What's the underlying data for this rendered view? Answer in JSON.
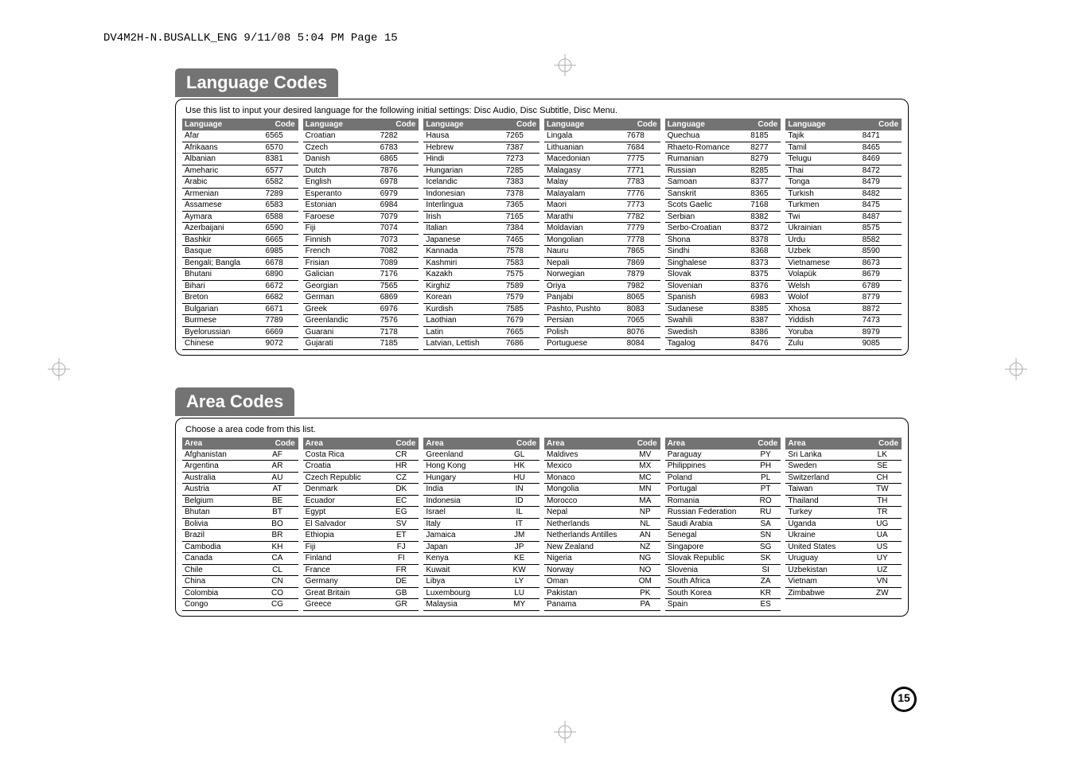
{
  "header": "DV4M2H-N.BUSALLK_ENG   9/11/08   5:04 PM   Page 15",
  "page_number": "15",
  "lang_section": {
    "title": "Language Codes",
    "subtitle": "Use this list to input your desired language for the following initial settings: Disc Audio, Disc Subtitle, Disc Menu.",
    "header_lang": "Language",
    "header_code": "Code",
    "columns": [
      [
        [
          "Afar",
          "6565"
        ],
        [
          "Afrikaans",
          "6570"
        ],
        [
          "Albanian",
          "8381"
        ],
        [
          "Ameharic",
          "6577"
        ],
        [
          "Arabic",
          "6582"
        ],
        [
          "Armenian",
          "7289"
        ],
        [
          "Assamese",
          "6583"
        ],
        [
          "Aymara",
          "6588"
        ],
        [
          "Azerbaijani",
          "6590"
        ],
        [
          "Bashkir",
          "6665"
        ],
        [
          "Basque",
          "6985"
        ],
        [
          "Bengali; Bangla",
          "6678"
        ],
        [
          "Bhutani",
          "6890"
        ],
        [
          "Bihari",
          "6672"
        ],
        [
          "Breton",
          "6682"
        ],
        [
          "Bulgarian",
          "6671"
        ],
        [
          "Burmese",
          "7789"
        ],
        [
          "Byelorussian",
          "6669"
        ],
        [
          "Chinese",
          "9072"
        ]
      ],
      [
        [
          "Croatian",
          "7282"
        ],
        [
          "Czech",
          "6783"
        ],
        [
          "Danish",
          "6865"
        ],
        [
          "Dutch",
          "7876"
        ],
        [
          "English",
          "6978"
        ],
        [
          "Esperanto",
          "6979"
        ],
        [
          "Estonian",
          "6984"
        ],
        [
          "Faroese",
          "7079"
        ],
        [
          "Fiji",
          "7074"
        ],
        [
          "Finnish",
          "7073"
        ],
        [
          "French",
          "7082"
        ],
        [
          "Frisian",
          "7089"
        ],
        [
          "Galician",
          "7176"
        ],
        [
          "Georgian",
          "7565"
        ],
        [
          "German",
          "6869"
        ],
        [
          "Greek",
          "6976"
        ],
        [
          "Greenlandic",
          "7576"
        ],
        [
          "Guarani",
          "7178"
        ],
        [
          "Gujarati",
          "7185"
        ]
      ],
      [
        [
          "Hausa",
          "7265"
        ],
        [
          "Hebrew",
          "7387"
        ],
        [
          "Hindi",
          "7273"
        ],
        [
          "Hungarian",
          "7285"
        ],
        [
          "Icelandic",
          "7383"
        ],
        [
          "Indonesian",
          "7378"
        ],
        [
          "Interlingua",
          "7365"
        ],
        [
          "Irish",
          "7165"
        ],
        [
          "Italian",
          "7384"
        ],
        [
          "Japanese",
          "7465"
        ],
        [
          "Kannada",
          "7578"
        ],
        [
          "Kashmiri",
          "7583"
        ],
        [
          "Kazakh",
          "7575"
        ],
        [
          "Kirghiz",
          "7589"
        ],
        [
          "Korean",
          "7579"
        ],
        [
          "Kurdish",
          "7585"
        ],
        [
          "Laothian",
          "7679"
        ],
        [
          "Latin",
          "7665"
        ],
        [
          "Latvian, Lettish",
          "7686"
        ]
      ],
      [
        [
          "Lingala",
          "7678"
        ],
        [
          "Lithuanian",
          "7684"
        ],
        [
          "Macedonian",
          "7775"
        ],
        [
          "Malagasy",
          "7771"
        ],
        [
          "Malay",
          "7783"
        ],
        [
          "Malayalam",
          "7776"
        ],
        [
          "Maori",
          "7773"
        ],
        [
          "Marathi",
          "7782"
        ],
        [
          "Moldavian",
          "7779"
        ],
        [
          "Mongolian",
          "7778"
        ],
        [
          "Nauru",
          "7865"
        ],
        [
          "Nepali",
          "7869"
        ],
        [
          "Norwegian",
          "7879"
        ],
        [
          "Oriya",
          "7982"
        ],
        [
          "Panjabi",
          "8065"
        ],
        [
          "Pashto, Pushto",
          "8083"
        ],
        [
          "Persian",
          "7065"
        ],
        [
          "Polish",
          "8076"
        ],
        [
          "Portuguese",
          "8084"
        ]
      ],
      [
        [
          "Quechua",
          "8185"
        ],
        [
          "Rhaeto-Romance",
          "8277"
        ],
        [
          "Rumanian",
          "8279"
        ],
        [
          "Russian",
          "8285"
        ],
        [
          "Samoan",
          "8377"
        ],
        [
          "Sanskrit",
          "8365"
        ],
        [
          "Scots Gaelic",
          "7168"
        ],
        [
          "Serbian",
          "8382"
        ],
        [
          "Serbo-Croatian",
          "8372"
        ],
        [
          "Shona",
          "8378"
        ],
        [
          "Sindhi",
          "8368"
        ],
        [
          "Singhalese",
          "8373"
        ],
        [
          "Slovak",
          "8375"
        ],
        [
          "Slovenian",
          "8376"
        ],
        [
          "Spanish",
          "6983"
        ],
        [
          "Sudanese",
          "8385"
        ],
        [
          "Swahili",
          "8387"
        ],
        [
          "Swedish",
          "8386"
        ],
        [
          "Tagalog",
          "8476"
        ]
      ],
      [
        [
          "Tajik",
          "8471"
        ],
        [
          "Tamil",
          "8465"
        ],
        [
          "Telugu",
          "8469"
        ],
        [
          "Thai",
          "8472"
        ],
        [
          "Tonga",
          "8479"
        ],
        [
          "Turkish",
          "8482"
        ],
        [
          "Turkmen",
          "8475"
        ],
        [
          "Twi",
          "8487"
        ],
        [
          "Ukrainian",
          "8575"
        ],
        [
          "Urdu",
          "8582"
        ],
        [
          "Uzbek",
          "8590"
        ],
        [
          "Vietnamese",
          "8673"
        ],
        [
          "Volapük",
          "8679"
        ],
        [
          "Welsh",
          "6789"
        ],
        [
          "Wolof",
          "8779"
        ],
        [
          "Xhosa",
          "8872"
        ],
        [
          "Yiddish",
          "7473"
        ],
        [
          "Yoruba",
          "8979"
        ],
        [
          "Zulu",
          "9085"
        ]
      ]
    ]
  },
  "area_section": {
    "title": "Area Codes",
    "subtitle": "Choose a area code from this list.",
    "header_area": "Area",
    "header_code": "Code",
    "columns": [
      [
        [
          "Afghanistan",
          "AF"
        ],
        [
          "Argentina",
          "AR"
        ],
        [
          "Australia",
          "AU"
        ],
        [
          "Austria",
          "AT"
        ],
        [
          "Belgium",
          "BE"
        ],
        [
          "Bhutan",
          "BT"
        ],
        [
          "Bolivia",
          "BO"
        ],
        [
          "Brazil",
          "BR"
        ],
        [
          "Cambodia",
          "KH"
        ],
        [
          "Canada",
          "CA"
        ],
        [
          "Chile",
          "CL"
        ],
        [
          "China",
          "CN"
        ],
        [
          "Colombia",
          "CO"
        ],
        [
          "Congo",
          "CG"
        ]
      ],
      [
        [
          "Costa Rica",
          "CR"
        ],
        [
          "Croatia",
          "HR"
        ],
        [
          "Czech Republic",
          "CZ"
        ],
        [
          "Denmark",
          "DK"
        ],
        [
          "Ecuador",
          "EC"
        ],
        [
          "Egypt",
          "EG"
        ],
        [
          "El Salvador",
          "SV"
        ],
        [
          "Ethiopia",
          "ET"
        ],
        [
          "Fiji",
          "FJ"
        ],
        [
          "Finland",
          "FI"
        ],
        [
          "France",
          "FR"
        ],
        [
          "Germany",
          "DE"
        ],
        [
          "Great Britain",
          "GB"
        ],
        [
          "Greece",
          "GR"
        ]
      ],
      [
        [
          "Greenland",
          "GL"
        ],
        [
          "Hong Kong",
          "HK"
        ],
        [
          "Hungary",
          "HU"
        ],
        [
          "India",
          "IN"
        ],
        [
          "Indonesia",
          "ID"
        ],
        [
          "Israel",
          "IL"
        ],
        [
          "Italy",
          "IT"
        ],
        [
          "Jamaica",
          "JM"
        ],
        [
          "Japan",
          "JP"
        ],
        [
          "Kenya",
          "KE"
        ],
        [
          "Kuwait",
          "KW"
        ],
        [
          "Libya",
          "LY"
        ],
        [
          "Luxembourg",
          "LU"
        ],
        [
          "Malaysia",
          "MY"
        ]
      ],
      [
        [
          "Maldives",
          "MV"
        ],
        [
          "Mexico",
          "MX"
        ],
        [
          "Monaco",
          "MC"
        ],
        [
          "Mongolia",
          "MN"
        ],
        [
          "Morocco",
          "MA"
        ],
        [
          "Nepal",
          "NP"
        ],
        [
          "Netherlands",
          "NL"
        ],
        [
          "Netherlands Antilles",
          "AN"
        ],
        [
          "New Zealand",
          "NZ"
        ],
        [
          "Nigeria",
          "NG"
        ],
        [
          "Norway",
          "NO"
        ],
        [
          "Oman",
          "OM"
        ],
        [
          "Pakistan",
          "PK"
        ],
        [
          "Panama",
          "PA"
        ]
      ],
      [
        [
          "Paraguay",
          "PY"
        ],
        [
          "Philippines",
          "PH"
        ],
        [
          "Poland",
          "PL"
        ],
        [
          "Portugal",
          "PT"
        ],
        [
          "Romania",
          "RO"
        ],
        [
          "Russian Federation",
          "RU"
        ],
        [
          "Saudi Arabia",
          "SA"
        ],
        [
          "Senegal",
          "SN"
        ],
        [
          "Singapore",
          "SG"
        ],
        [
          "Slovak Republic",
          "SK"
        ],
        [
          "Slovenia",
          "SI"
        ],
        [
          "South Africa",
          "ZA"
        ],
        [
          "South Korea",
          "KR"
        ],
        [
          "Spain",
          "ES"
        ]
      ],
      [
        [
          "Sri Lanka",
          "LK"
        ],
        [
          "Sweden",
          "SE"
        ],
        [
          "Switzerland",
          "CH"
        ],
        [
          "Taiwan",
          "TW"
        ],
        [
          "Thailand",
          "TH"
        ],
        [
          "Turkey",
          "TR"
        ],
        [
          "Uganda",
          "UG"
        ],
        [
          "Ukraine",
          "UA"
        ],
        [
          "United States",
          "US"
        ],
        [
          "Uruguay",
          "UY"
        ],
        [
          "Uzbekistan",
          "UZ"
        ],
        [
          "Vietnam",
          "VN"
        ],
        [
          "Zimbabwe",
          "ZW"
        ]
      ]
    ]
  },
  "colors": {
    "header_bg": "#737373",
    "header_fg": "#ffffff",
    "text": "#000000",
    "border": "#000000",
    "regmark": "#999999"
  }
}
